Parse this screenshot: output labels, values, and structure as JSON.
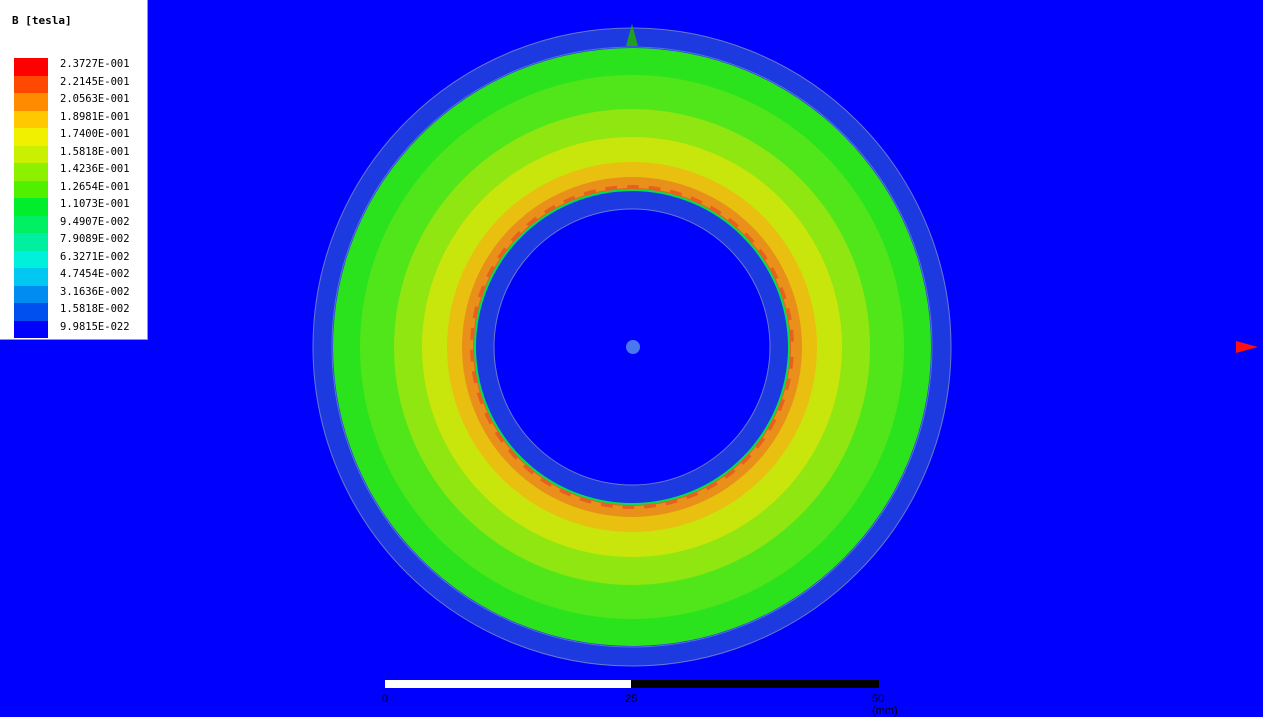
{
  "legend": {
    "title": "B [tesla]",
    "entries": [
      {
        "value": "2.3727E-001",
        "color": "#ff0000"
      },
      {
        "value": "2.2145E-001",
        "color": "#ff4800"
      },
      {
        "value": "2.0563E-001",
        "color": "#ff8c00"
      },
      {
        "value": "1.8981E-001",
        "color": "#ffc800"
      },
      {
        "value": "1.7400E-001",
        "color": "#f0f000"
      },
      {
        "value": "1.5818E-001",
        "color": "#c8f000"
      },
      {
        "value": "1.4236E-001",
        "color": "#8cf000"
      },
      {
        "value": "1.2654E-001",
        "color": "#50f000"
      },
      {
        "value": "1.1073E-001",
        "color": "#00ee2c"
      },
      {
        "value": "9.4907E-002",
        "color": "#00f064"
      },
      {
        "value": "7.9089E-002",
        "color": "#00f0a0"
      },
      {
        "value": "6.3271E-002",
        "color": "#00f0dc"
      },
      {
        "value": "4.7454E-002",
        "color": "#00c8f0"
      },
      {
        "value": "3.1636E-002",
        "color": "#008cf0"
      },
      {
        "value": "1.5818E-002",
        "color": "#0050f0"
      },
      {
        "value": "9.9815E-022",
        "color": "#0000fe"
      }
    ]
  },
  "scale_bar": {
    "labels": [
      "0",
      "25",
      "50 (mm)"
    ]
  },
  "colors": {
    "background": "#0000fe",
    "shell": "#1c3adf",
    "green_outer": "#2ae31c",
    "green_mid": "#50e61a",
    "yellow_green": "#8fe610",
    "lime": "#c8e60c",
    "orange": "#e9c010",
    "dark_orange": "#e8901a",
    "red_orange": "#e86020",
    "axis_arrow_y": "#20a020",
    "axis_arrow_x": "#ff1010"
  }
}
